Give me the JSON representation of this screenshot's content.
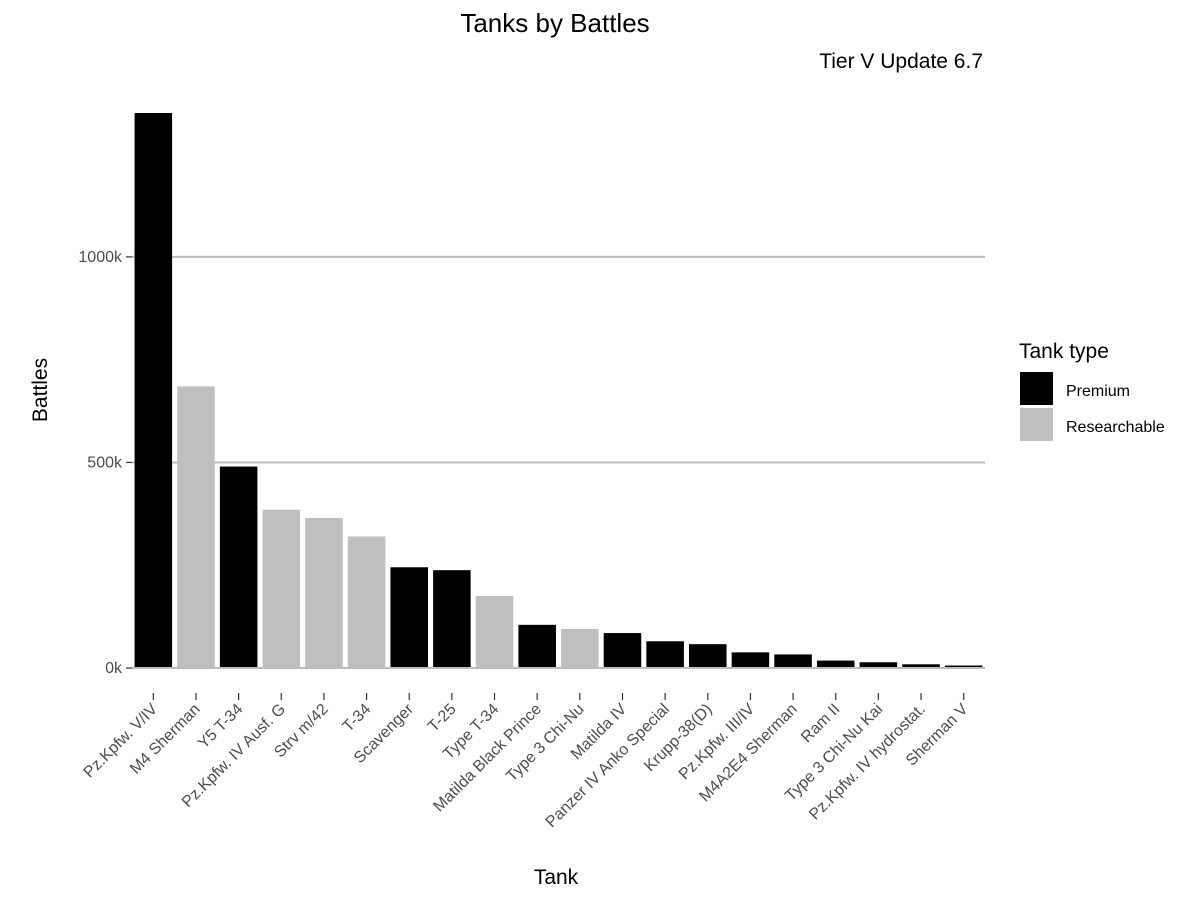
{
  "chart_data": {
    "type": "bar",
    "title": "Tanks by Battles",
    "subtitle": "Tier V Update 6.7",
    "xlabel": "Tank",
    "ylabel": "Battles",
    "ylim": [
      0,
      1350000
    ],
    "yticks": [
      {
        "value": 0,
        "label": "0k"
      },
      {
        "value": 500000,
        "label": "500k"
      },
      {
        "value": 1000000,
        "label": "1000k"
      }
    ],
    "grid": "horizontal-major",
    "legend": {
      "title": "Tank type",
      "position": "right",
      "entries": [
        {
          "label": "Premium",
          "color": "#000000"
        },
        {
          "label": "Researchable",
          "color": "#bfbfbf"
        }
      ]
    },
    "categories": [
      "Pz.Kpfw. V/IV",
      "M4 Sherman",
      "Y5 T-34",
      "Pz.Kpfw. IV Ausf. G",
      "Strv m/42",
      "T-34",
      "Scavenger",
      "T-25",
      "Type T-34",
      "Matilda Black Prince",
      "Type 3 Chi-Nu",
      "Matilda IV",
      "Panzer IV Anko Special",
      "Krupp-38(D)",
      "Pz.Kpfw. III/IV",
      "M4A2E4 Sherman",
      "Ram II",
      "Type 3 Chi-Nu Kai",
      "Pz.Kpfw. IV hydrostat.",
      "Sherman V"
    ],
    "values": [
      1350000,
      685000,
      490000,
      385000,
      365000,
      320000,
      245000,
      238000,
      175000,
      105000,
      95000,
      85000,
      65000,
      58000,
      38000,
      33000,
      18000,
      14000,
      9000,
      6000
    ],
    "types": [
      "Premium",
      "Researchable",
      "Premium",
      "Researchable",
      "Researchable",
      "Researchable",
      "Premium",
      "Premium",
      "Researchable",
      "Premium",
      "Researchable",
      "Premium",
      "Premium",
      "Premium",
      "Premium",
      "Premium",
      "Premium",
      "Premium",
      "Premium",
      "Premium"
    ]
  }
}
